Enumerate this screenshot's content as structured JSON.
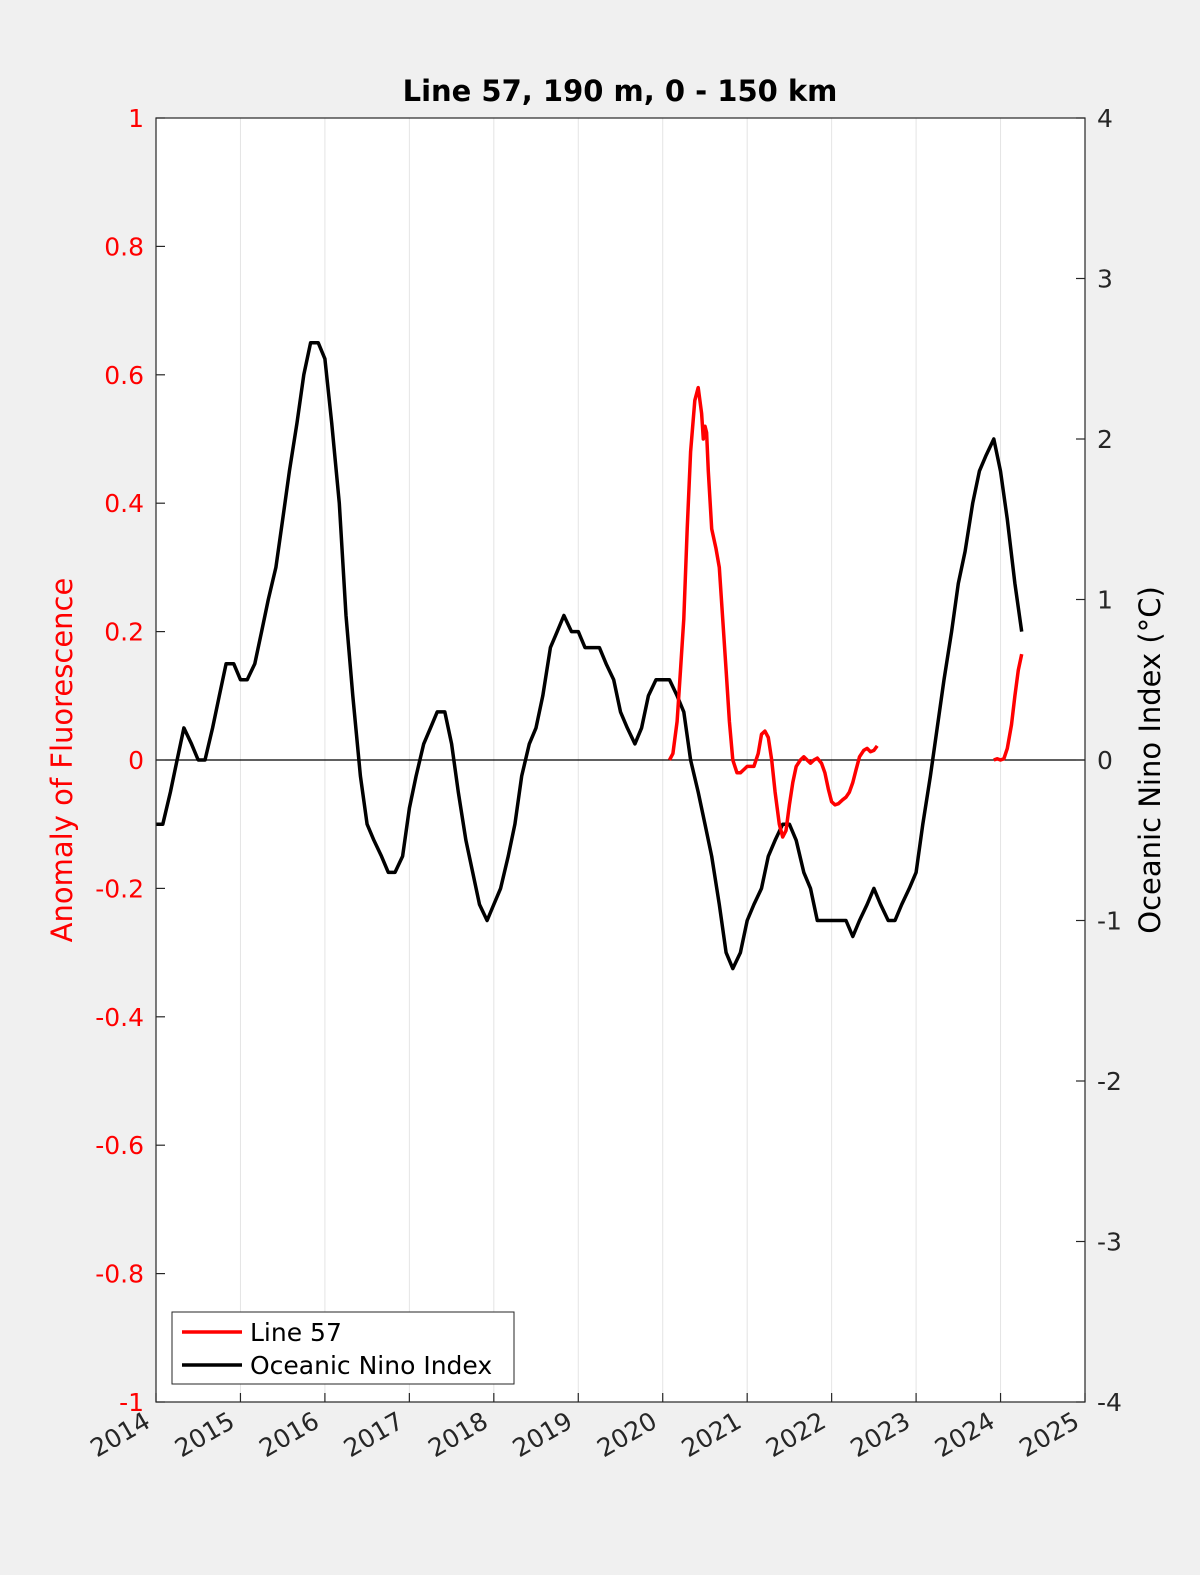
{
  "chart_data": {
    "type": "line",
    "title": "Line 57, 190 m, 0 - 150 km",
    "xlabel": "",
    "ylabel_left": "Anomaly of Fluorescence",
    "ylabel_right": "Oceanic Nino Index (°C)",
    "xlim": [
      2014,
      2025
    ],
    "ylim_left": [
      -1,
      1
    ],
    "ylim_right": [
      -4,
      4
    ],
    "x_ticks": [
      "2014",
      "2015",
      "2016",
      "2017",
      "2018",
      "2019",
      "2020",
      "2021",
      "2022",
      "2023",
      "2024",
      "2025"
    ],
    "y_ticks_left": [
      "1",
      "0.8",
      "0.6",
      "0.4",
      "0.2",
      "0",
      "-0.2",
      "-0.4",
      "-0.6",
      "-0.8",
      "-1"
    ],
    "y_ticks_right": [
      "4",
      "3",
      "2",
      "1",
      "0",
      "-1",
      "-2",
      "-3",
      "-4"
    ],
    "grid": "x",
    "legend_placement": "bottom-left",
    "series": [
      {
        "name": "Line 57",
        "axis": "left",
        "color": "#ff0000",
        "segments": [
          [
            [
              2020.08,
              0.0
            ],
            [
              2020.12,
              0.01
            ],
            [
              2020.17,
              0.06
            ],
            [
              2020.21,
              0.14
            ],
            [
              2020.25,
              0.22
            ],
            [
              2020.29,
              0.36
            ],
            [
              2020.33,
              0.48
            ],
            [
              2020.38,
              0.56
            ],
            [
              2020.42,
              0.58
            ],
            [
              2020.46,
              0.54
            ],
            [
              2020.48,
              0.5
            ],
            [
              2020.5,
              0.52
            ],
            [
              2020.52,
              0.51
            ],
            [
              2020.54,
              0.45
            ],
            [
              2020.58,
              0.36
            ],
            [
              2020.63,
              0.33
            ],
            [
              2020.67,
              0.3
            ],
            [
              2020.71,
              0.22
            ],
            [
              2020.75,
              0.14
            ],
            [
              2020.79,
              0.06
            ],
            [
              2020.83,
              0.0
            ],
            [
              2020.88,
              -0.02
            ],
            [
              2020.92,
              -0.02
            ],
            [
              2020.96,
              -0.015
            ],
            [
              2021.0,
              -0.01
            ],
            [
              2021.04,
              -0.01
            ],
            [
              2021.08,
              -0.01
            ],
            [
              2021.13,
              0.01
            ],
            [
              2021.17,
              0.04
            ],
            [
              2021.21,
              0.045
            ],
            [
              2021.25,
              0.035
            ],
            [
              2021.29,
              0.0
            ],
            [
              2021.33,
              -0.05
            ],
            [
              2021.38,
              -0.1
            ],
            [
              2021.42,
              -0.12
            ],
            [
              2021.46,
              -0.11
            ],
            [
              2021.5,
              -0.07
            ],
            [
              2021.54,
              -0.035
            ],
            [
              2021.58,
              -0.01
            ],
            [
              2021.63,
              0.0
            ],
            [
              2021.67,
              0.005
            ],
            [
              2021.71,
              0.0
            ],
            [
              2021.75,
              -0.005
            ],
            [
              2021.79,
              0.0
            ],
            [
              2021.83,
              0.003
            ],
            [
              2021.88,
              -0.005
            ],
            [
              2021.92,
              -0.02
            ],
            [
              2021.96,
              -0.045
            ],
            [
              2022.0,
              -0.065
            ],
            [
              2022.04,
              -0.07
            ],
            [
              2022.08,
              -0.068
            ],
            [
              2022.13,
              -0.062
            ],
            [
              2022.17,
              -0.058
            ],
            [
              2022.21,
              -0.05
            ],
            [
              2022.25,
              -0.035
            ],
            [
              2022.29,
              -0.015
            ],
            [
              2022.33,
              0.005
            ],
            [
              2022.38,
              0.015
            ],
            [
              2022.42,
              0.018
            ],
            [
              2022.46,
              0.013
            ],
            [
              2022.5,
              0.015
            ],
            [
              2022.54,
              0.022
            ]
          ],
          [
            [
              2023.92,
              0.0
            ],
            [
              2023.96,
              0.002
            ],
            [
              2024.0,
              0.0
            ],
            [
              2024.04,
              0.002
            ],
            [
              2024.08,
              0.018
            ],
            [
              2024.13,
              0.055
            ],
            [
              2024.17,
              0.1
            ],
            [
              2024.21,
              0.14
            ],
            [
              2024.25,
              0.165
            ]
          ]
        ]
      },
      {
        "name": "Oceanic Nino Index",
        "axis": "right",
        "color": "#000000",
        "segments": [
          [
            [
              2014.0,
              -0.4
            ],
            [
              2014.08,
              -0.4
            ],
            [
              2014.17,
              -0.2
            ],
            [
              2014.25,
              0.0
            ],
            [
              2014.33,
              0.2
            ],
            [
              2014.42,
              0.1
            ],
            [
              2014.5,
              0.0
            ],
            [
              2014.58,
              0.0
            ],
            [
              2014.67,
              0.2
            ],
            [
              2014.75,
              0.4
            ],
            [
              2014.83,
              0.6
            ],
            [
              2014.92,
              0.6
            ],
            [
              2015.0,
              0.5
            ],
            [
              2015.08,
              0.5
            ],
            [
              2015.17,
              0.6
            ],
            [
              2015.25,
              0.8
            ],
            [
              2015.33,
              1.0
            ],
            [
              2015.42,
              1.2
            ],
            [
              2015.5,
              1.5
            ],
            [
              2015.58,
              1.8
            ],
            [
              2015.67,
              2.1
            ],
            [
              2015.75,
              2.4
            ],
            [
              2015.83,
              2.6
            ],
            [
              2015.92,
              2.6
            ],
            [
              2016.0,
              2.5
            ],
            [
              2016.08,
              2.1
            ],
            [
              2016.17,
              1.6
            ],
            [
              2016.25,
              0.9
            ],
            [
              2016.33,
              0.4
            ],
            [
              2016.42,
              -0.1
            ],
            [
              2016.5,
              -0.4
            ],
            [
              2016.58,
              -0.5
            ],
            [
              2016.67,
              -0.6
            ],
            [
              2016.75,
              -0.7
            ],
            [
              2016.83,
              -0.7
            ],
            [
              2016.92,
              -0.6
            ],
            [
              2017.0,
              -0.3
            ],
            [
              2017.08,
              -0.1
            ],
            [
              2017.17,
              0.1
            ],
            [
              2017.25,
              0.2
            ],
            [
              2017.33,
              0.3
            ],
            [
              2017.42,
              0.3
            ],
            [
              2017.5,
              0.1
            ],
            [
              2017.58,
              -0.2
            ],
            [
              2017.67,
              -0.5
            ],
            [
              2017.75,
              -0.7
            ],
            [
              2017.83,
              -0.9
            ],
            [
              2017.92,
              -1.0
            ],
            [
              2018.0,
              -0.9
            ],
            [
              2018.08,
              -0.8
            ],
            [
              2018.17,
              -0.6
            ],
            [
              2018.25,
              -0.4
            ],
            [
              2018.33,
              -0.1
            ],
            [
              2018.42,
              0.1
            ],
            [
              2018.5,
              0.2
            ],
            [
              2018.58,
              0.4
            ],
            [
              2018.67,
              0.7
            ],
            [
              2018.75,
              0.8
            ],
            [
              2018.83,
              0.9
            ],
            [
              2018.92,
              0.8
            ],
            [
              2019.0,
              0.8
            ],
            [
              2019.08,
              0.7
            ],
            [
              2019.17,
              0.7
            ],
            [
              2019.25,
              0.7
            ],
            [
              2019.33,
              0.6
            ],
            [
              2019.42,
              0.5
            ],
            [
              2019.5,
              0.3
            ],
            [
              2019.58,
              0.2
            ],
            [
              2019.67,
              0.1
            ],
            [
              2019.75,
              0.2
            ],
            [
              2019.83,
              0.4
            ],
            [
              2019.92,
              0.5
            ],
            [
              2020.0,
              0.5
            ],
            [
              2020.08,
              0.5
            ],
            [
              2020.17,
              0.4
            ],
            [
              2020.25,
              0.3
            ],
            [
              2020.33,
              0.0
            ],
            [
              2020.42,
              -0.2
            ],
            [
              2020.5,
              -0.4
            ],
            [
              2020.58,
              -0.6
            ],
            [
              2020.67,
              -0.9
            ],
            [
              2020.75,
              -1.2
            ],
            [
              2020.83,
              -1.3
            ],
            [
              2020.92,
              -1.2
            ],
            [
              2021.0,
              -1.0
            ],
            [
              2021.08,
              -0.9
            ],
            [
              2021.17,
              -0.8
            ],
            [
              2021.25,
              -0.6
            ],
            [
              2021.33,
              -0.5
            ],
            [
              2021.42,
              -0.4
            ],
            [
              2021.5,
              -0.4
            ],
            [
              2021.58,
              -0.5
            ],
            [
              2021.67,
              -0.7
            ],
            [
              2021.75,
              -0.8
            ],
            [
              2021.83,
              -1.0
            ],
            [
              2021.92,
              -1.0
            ],
            [
              2022.0,
              -1.0
            ],
            [
              2022.08,
              -1.0
            ],
            [
              2022.17,
              -1.0
            ],
            [
              2022.25,
              -1.1
            ],
            [
              2022.33,
              -1.0
            ],
            [
              2022.42,
              -0.9
            ],
            [
              2022.5,
              -0.8
            ],
            [
              2022.58,
              -0.9
            ],
            [
              2022.67,
              -1.0
            ],
            [
              2022.75,
              -1.0
            ],
            [
              2022.83,
              -0.9
            ],
            [
              2022.92,
              -0.8
            ],
            [
              2023.0,
              -0.7
            ],
            [
              2023.08,
              -0.4
            ],
            [
              2023.17,
              -0.1
            ],
            [
              2023.25,
              0.2
            ],
            [
              2023.33,
              0.5
            ],
            [
              2023.42,
              0.8
            ],
            [
              2023.5,
              1.1
            ],
            [
              2023.58,
              1.3
            ],
            [
              2023.67,
              1.6
            ],
            [
              2023.75,
              1.8
            ],
            [
              2023.83,
              1.9
            ],
            [
              2023.92,
              2.0
            ],
            [
              2024.0,
              1.8
            ],
            [
              2024.08,
              1.5
            ],
            [
              2024.17,
              1.1
            ],
            [
              2024.25,
              0.8
            ]
          ]
        ]
      }
    ]
  }
}
